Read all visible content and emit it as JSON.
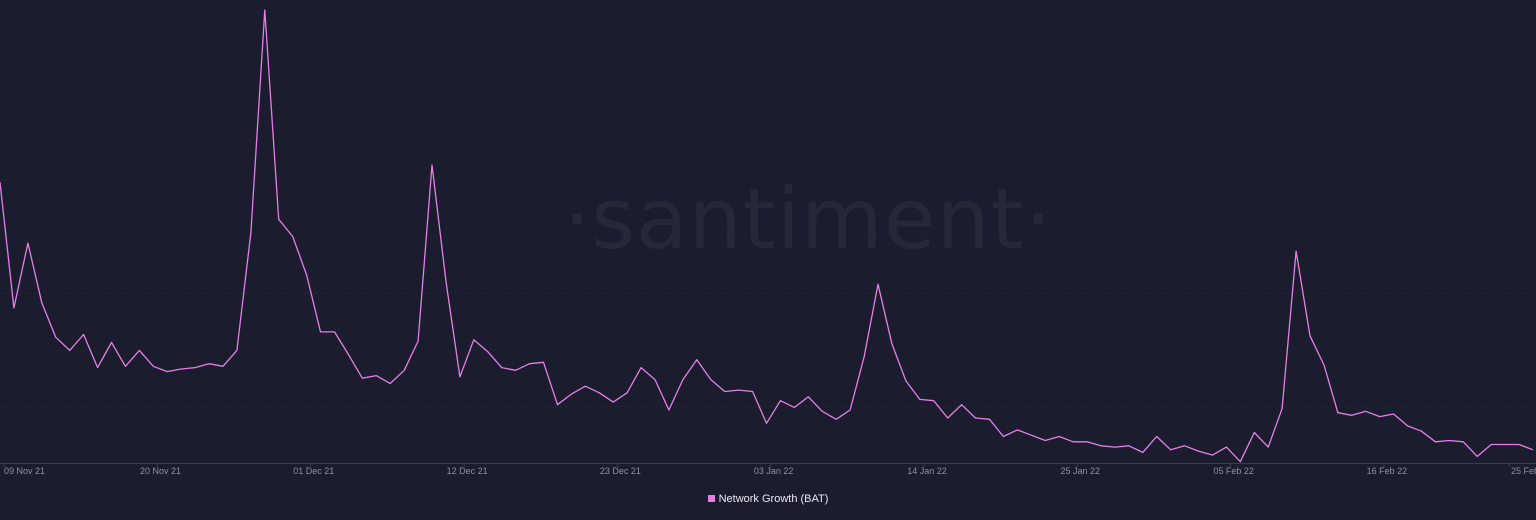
{
  "watermark": "·santiment·",
  "colors": {
    "background": "#1b1d2e",
    "line": "#e57fe6",
    "grid": "#262838",
    "axis": "#3a3d52"
  },
  "chart_data": {
    "type": "line",
    "title": "",
    "xlabel": "",
    "ylabel": "",
    "x_ticks": [
      "09 Nov 21",
      "20 Nov 21",
      "01 Dec 21",
      "12 Dec 21",
      "23 Dec 21",
      "03 Jan 22",
      "14 Jan 22",
      "25 Jan 22",
      "05 Feb 22",
      "16 Feb 22",
      "25 Feb"
    ],
    "x_tick_index": [
      0.3,
      11.3,
      22.3,
      33.3,
      44.3,
      55.3,
      66.3,
      77.3,
      88.3,
      99.3,
      108.3
    ],
    "ylim": [
      0,
      320
    ],
    "grid": true,
    "legend": "bottom-center",
    "series": [
      {
        "name": "Network Growth (BAT)",
        "values": [
          212,
          117,
          166,
          121,
          95,
          85,
          97,
          72,
          91,
          73,
          85,
          73,
          69,
          71,
          72,
          75,
          73,
          85,
          174,
          342,
          184,
          171,
          142,
          99,
          99,
          82,
          64,
          66,
          60,
          70,
          92,
          225,
          137,
          65,
          93,
          84,
          72,
          70,
          75,
          76,
          44,
          52,
          58,
          53,
          46,
          53,
          72,
          63,
          40,
          63,
          78,
          63,
          54,
          55,
          54,
          30,
          47,
          42,
          50,
          39,
          33,
          40,
          80,
          135,
          90,
          62,
          48,
          47,
          34,
          44,
          34,
          33,
          20,
          25,
          21,
          17,
          20,
          16,
          16,
          13,
          12,
          13,
          8,
          20,
          10,
          13,
          9,
          6,
          12,
          1,
          23,
          12,
          41,
          160,
          96,
          74,
          38,
          36,
          39,
          35,
          37,
          28,
          24,
          16,
          17,
          16,
          5,
          14,
          14,
          14,
          10
        ]
      }
    ]
  }
}
